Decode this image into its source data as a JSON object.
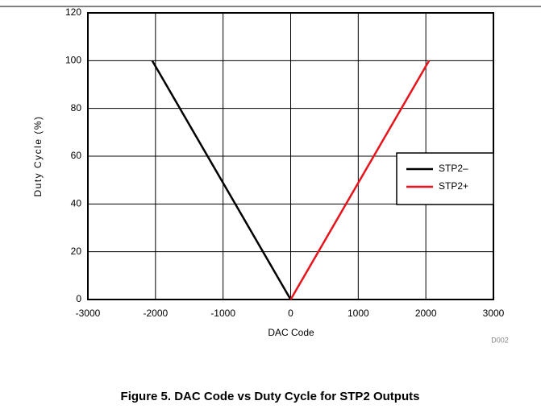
{
  "chart_data": {
    "type": "line",
    "xlabel": "DAC Code",
    "ylabel": "Duty Cycle (%)",
    "note": "D002",
    "caption": "Figure 5. DAC Code vs Duty Cycle for STP2 Outputs",
    "series": [
      {
        "name": "STP2–",
        "color": "#000000",
        "x": [
          -2048,
          0
        ],
        "values": [
          100,
          0
        ]
      },
      {
        "name": "STP2+",
        "color": "#e8141b",
        "x": [
          0,
          2048
        ],
        "values": [
          0,
          100
        ]
      }
    ],
    "xlim": [
      -3000,
      3000
    ],
    "xticks": [
      -3000,
      -2000,
      -1000,
      0,
      1000,
      2000,
      3000
    ],
    "ylim": [
      0,
      120
    ],
    "yticks": [
      0,
      20,
      40,
      60,
      80,
      100,
      120
    ],
    "grid": true,
    "legend": "right"
  }
}
